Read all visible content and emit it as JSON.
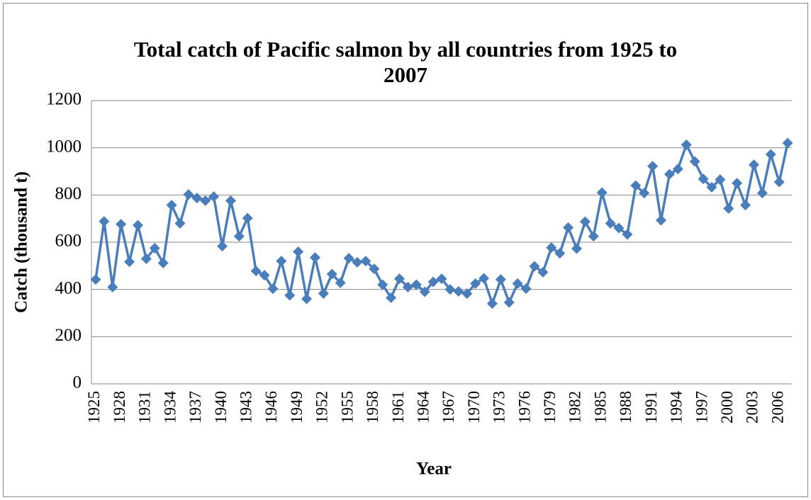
{
  "chart_data": {
    "type": "line",
    "title": "Total catch of Pacific salmon by all countries from 1925 to 2007",
    "x_label": "Year",
    "y_label": "Catch (thousand t)",
    "categories": [
      "1925",
      null,
      null,
      "1928",
      null,
      null,
      "1931",
      null,
      null,
      "1934",
      null,
      null,
      "1937",
      null,
      null,
      "1940",
      null,
      null,
      "1943",
      null,
      null,
      "1946",
      null,
      null,
      "1949",
      null,
      null,
      "1952",
      null,
      null,
      "1955",
      null,
      null,
      "1958",
      null,
      null,
      "1961",
      null,
      null,
      "1964",
      null,
      null,
      "1967",
      null,
      null,
      "1970",
      null,
      null,
      "1973",
      null,
      null,
      "1976",
      null,
      null,
      "1979",
      null,
      null,
      "1982",
      null,
      null,
      "1985",
      null,
      null,
      "1988",
      null,
      null,
      "1991",
      null,
      null,
      "1994",
      null,
      null,
      "1997",
      null,
      null,
      "2000",
      null,
      null,
      "2003",
      null,
      null,
      "2006",
      null
    ],
    "values": [
      442,
      688,
      410,
      676,
      517,
      672,
      530,
      575,
      512,
      757,
      680,
      802,
      787,
      776,
      793,
      583,
      776,
      625,
      702,
      478,
      460,
      403,
      520,
      375,
      560,
      360,
      535,
      383,
      465,
      428,
      532,
      515,
      520,
      487,
      420,
      365,
      445,
      410,
      420,
      390,
      432,
      445,
      400,
      392,
      382,
      425,
      447,
      340,
      442,
      345,
      425,
      403,
      498,
      473,
      577,
      553,
      662,
      573,
      687,
      625,
      810,
      680,
      660,
      633,
      840,
      808,
      922,
      693,
      888,
      910,
      1013,
      942,
      868,
      833,
      865,
      743,
      850,
      757,
      928,
      808,
      972,
      855,
      1020
    ],
    "color": "#4a7ebb",
    "ylim": [
      0,
      1200
    ],
    "yticks": [
      0,
      200,
      400,
      600,
      800,
      1000,
      1200
    ],
    "grid": true
  }
}
